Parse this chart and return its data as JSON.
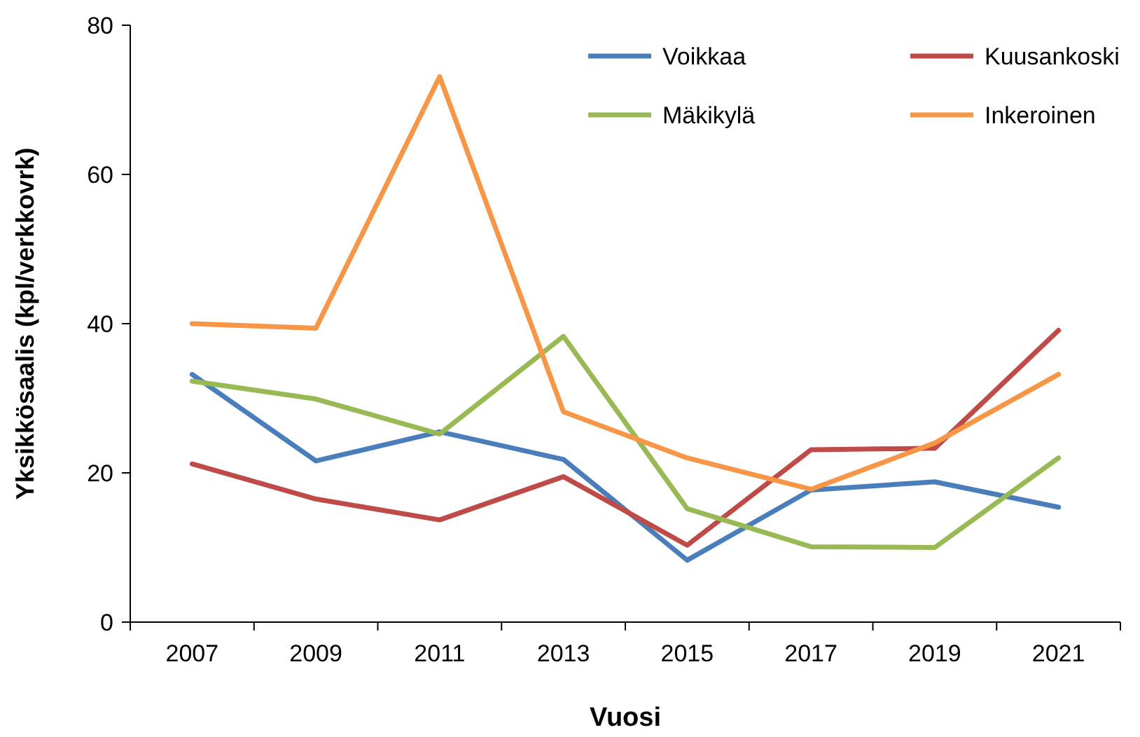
{
  "chart_data": {
    "type": "line",
    "xlabel": "Vuosi",
    "ylabel": "Yksikkösaalis (kpl/verkkovrk)",
    "categories": [
      "2007",
      "2009",
      "2011",
      "2013",
      "2015",
      "2017",
      "2019",
      "2021"
    ],
    "series": [
      {
        "name": "Voikkaa",
        "color": "#4a7ebb",
        "values": [
          33.2,
          21.6,
          25.5,
          21.8,
          8.3,
          17.7,
          18.8,
          15.4
        ]
      },
      {
        "name": "Kuusankoski",
        "color": "#be4b48",
        "values": [
          21.2,
          16.5,
          13.7,
          19.5,
          10.3,
          23.1,
          23.3,
          39.1
        ]
      },
      {
        "name": "Mäkikylä",
        "color": "#98b954",
        "values": [
          32.3,
          29.9,
          25.2,
          38.3,
          15.2,
          10.1,
          10.0,
          22.0
        ]
      },
      {
        "name": "Inkeroinen",
        "color": "#f79646",
        "values": [
          40.0,
          39.4,
          73.1,
          28.2,
          22.0,
          17.8,
          24.0,
          33.2
        ]
      }
    ],
    "ylim": [
      0,
      80
    ],
    "yticks": [
      0,
      20,
      40,
      60,
      80
    ],
    "grid": false,
    "legend": "top right",
    "marker": "none",
    "line_style": "solid"
  }
}
